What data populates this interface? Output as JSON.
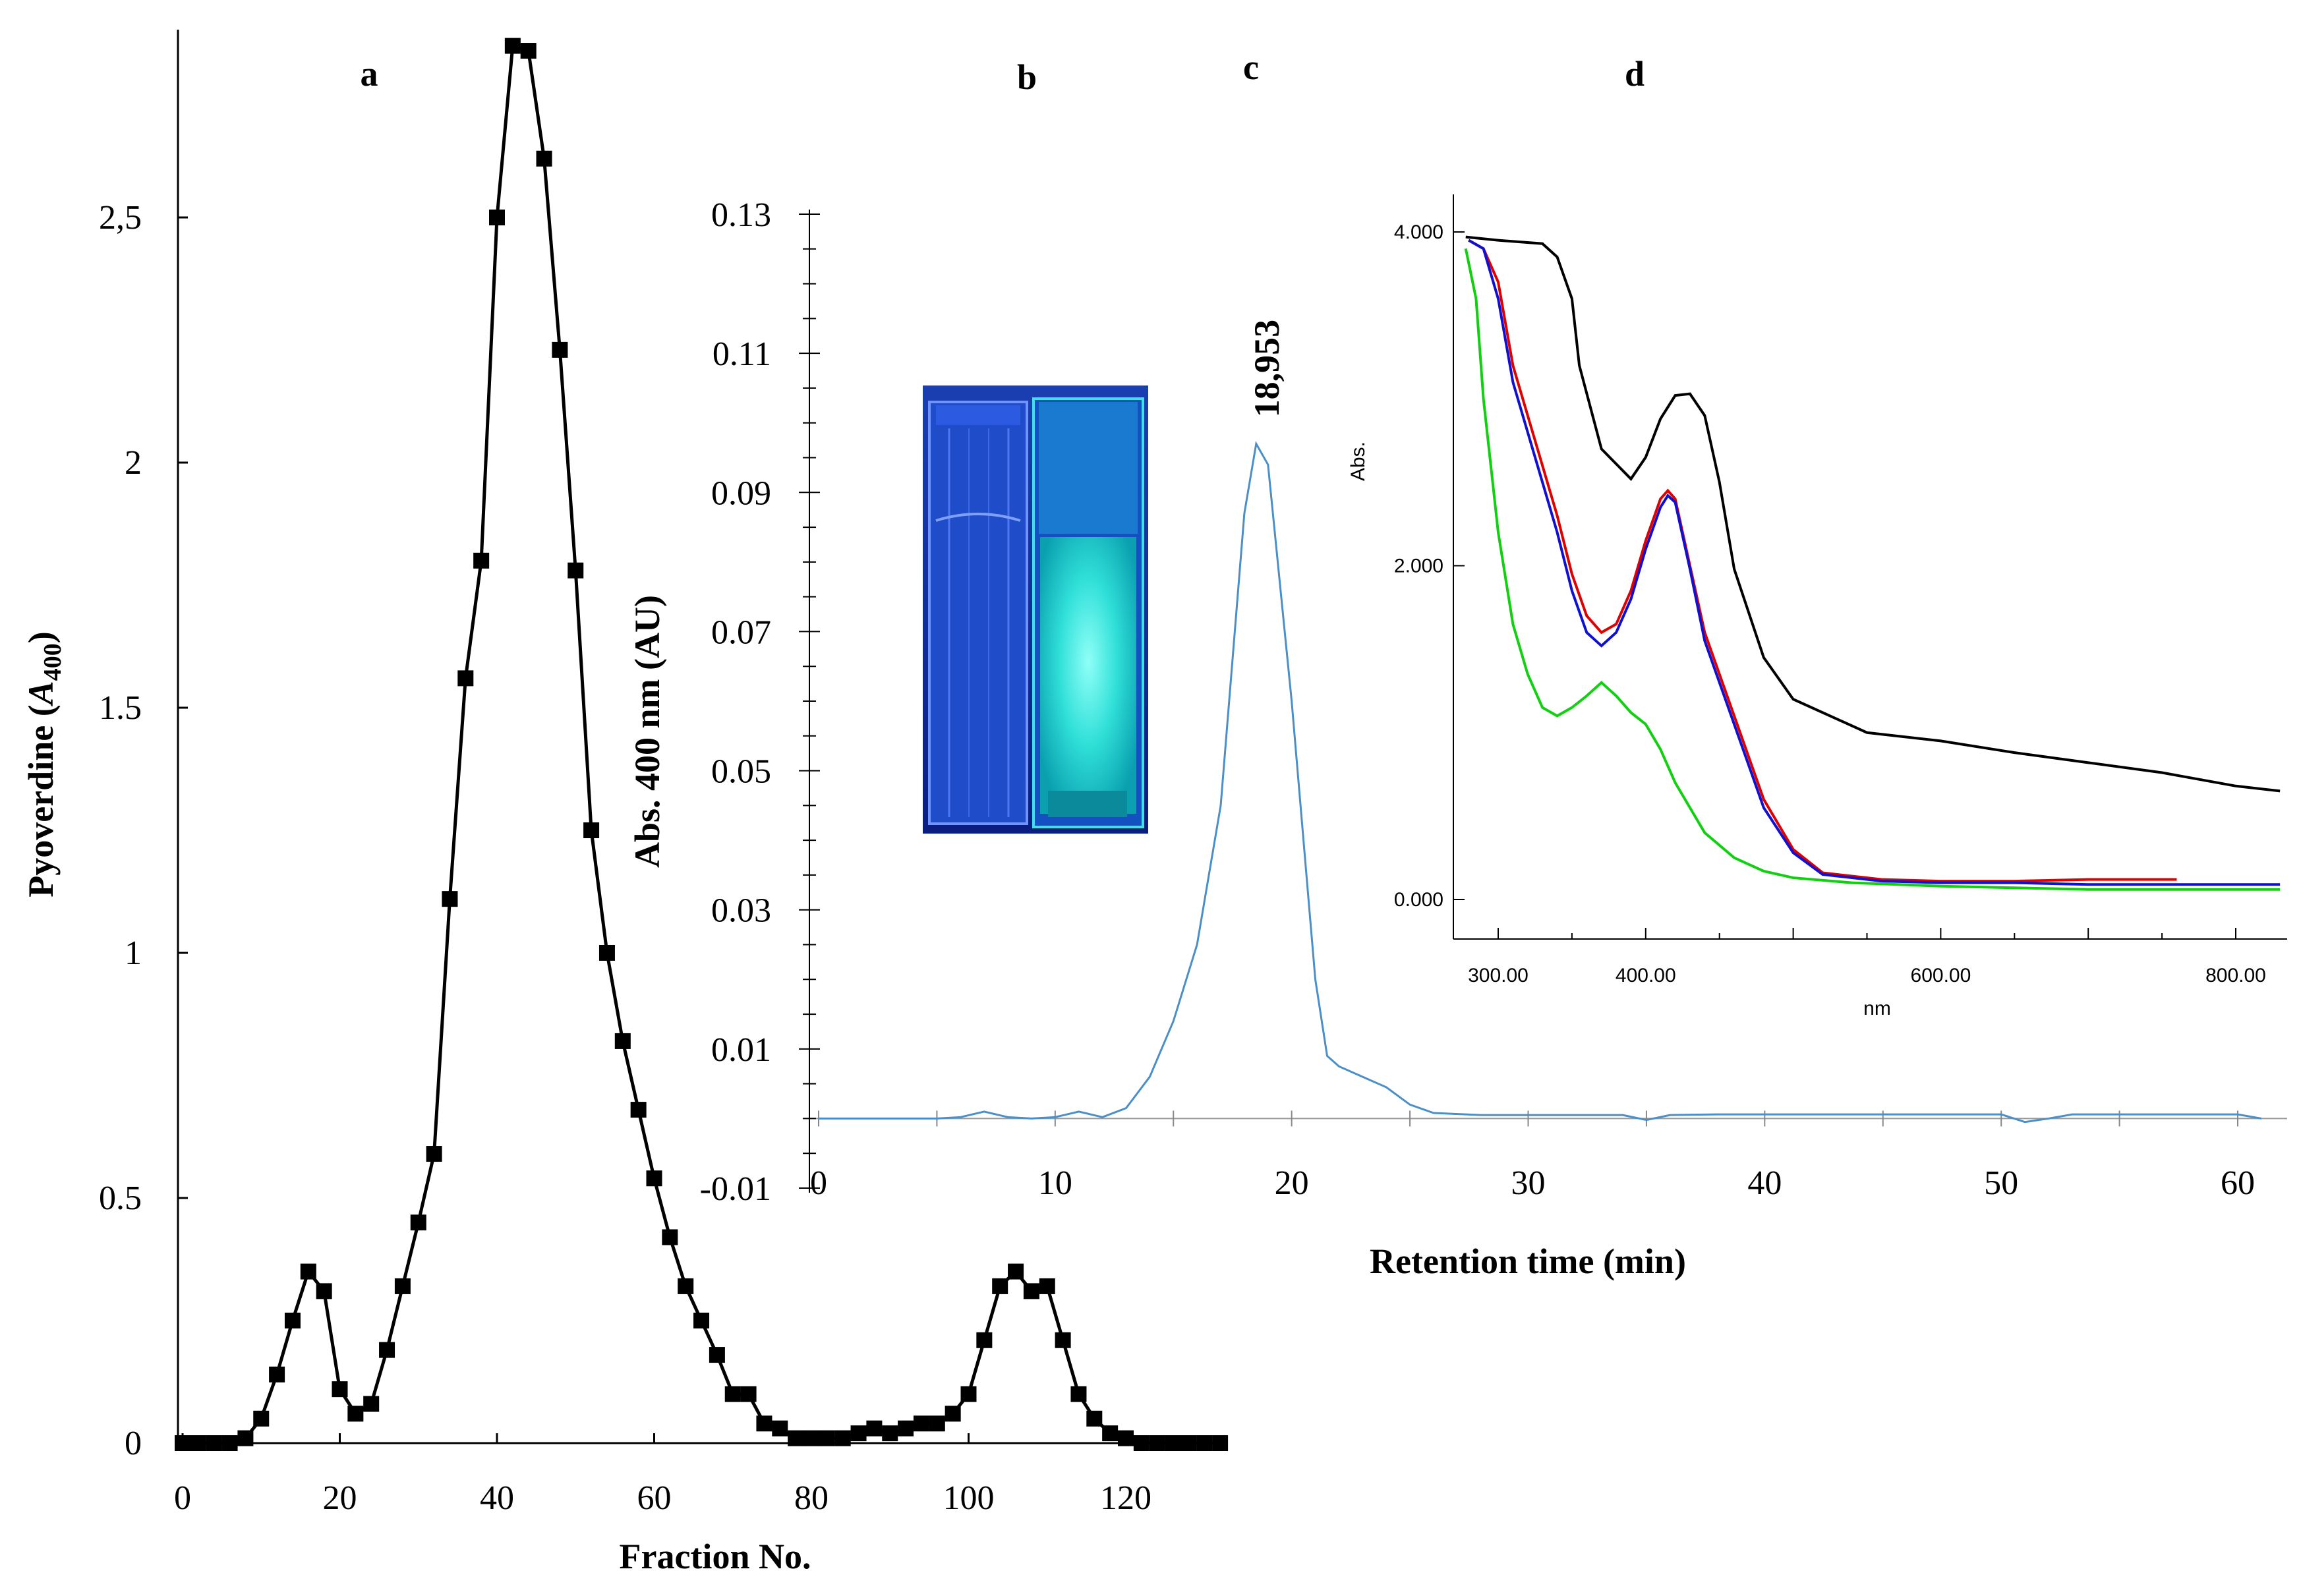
{
  "panels": {
    "a": "a",
    "b": "b",
    "c": "c",
    "d": "d"
  },
  "photo": {
    "description_icon": "cuvette-photo-icon",
    "glow_color": "#30e0d8"
  },
  "chart_data": [
    {
      "id": "panel-a",
      "type": "line",
      "title": "",
      "xlabel": "Fraction No.",
      "ylabel_main": "Pyoverdine (",
      "ylabel_italic": "A",
      "ylabel_sub": "400",
      "ylabel_end": ")",
      "xlim": [
        0,
        132
      ],
      "ylim": [
        0,
        2.9
      ],
      "xticks": [
        0,
        20,
        40,
        60,
        80,
        100,
        120
      ],
      "xtick_labels": [
        "0",
        "20",
        "40",
        "60",
        "80",
        "100",
        "120"
      ],
      "yticks": [
        0,
        0.5,
        1,
        1.5,
        2,
        2.5
      ],
      "ytick_labels": [
        "0",
        "0.5",
        "1",
        "1.5",
        "2",
        "2,5"
      ],
      "marker": "square",
      "color": "#000000",
      "x": [
        0,
        2,
        4,
        6,
        8,
        10,
        12,
        14,
        16,
        18,
        20,
        22,
        24,
        26,
        28,
        30,
        32,
        34,
        36,
        38,
        40,
        42,
        44,
        46,
        48,
        50,
        52,
        54,
        56,
        58,
        60,
        62,
        64,
        66,
        68,
        70,
        72,
        74,
        76,
        78,
        80,
        82,
        84,
        86,
        88,
        90,
        92,
        94,
        96,
        98,
        100,
        102,
        104,
        106,
        108,
        110,
        112,
        114,
        116,
        118,
        120,
        122,
        124,
        126,
        128,
        130,
        132
      ],
      "y": [
        0,
        0,
        0,
        0,
        0.01,
        0.05,
        0.14,
        0.25,
        0.35,
        0.31,
        0.11,
        0.06,
        0.08,
        0.19,
        0.32,
        0.45,
        0.59,
        1.11,
        1.56,
        1.8,
        2.5,
        2.85,
        2.84,
        2.62,
        2.23,
        1.78,
        1.25,
        1.0,
        0.82,
        0.68,
        0.54,
        0.42,
        0.32,
        0.25,
        0.18,
        0.1,
        0.1,
        0.04,
        0.03,
        0.01,
        0.01,
        0.01,
        0.01,
        0.02,
        0.03,
        0.02,
        0.03,
        0.04,
        0.04,
        0.06,
        0.1,
        0.21,
        0.32,
        0.35,
        0.31,
        0.32,
        0.21,
        0.1,
        0.05,
        0.02,
        0.01,
        0,
        0,
        0,
        0,
        0,
        0
      ]
    },
    {
      "id": "panel-c",
      "type": "line",
      "title": "",
      "xlabel": "Retention time (min)",
      "ylabel": "Abs. 400 nm (AU)",
      "xlim": [
        0,
        61
      ],
      "ylim": [
        -0.01,
        0.13
      ],
      "xticks": [
        0,
        10,
        20,
        30,
        40,
        50,
        60
      ],
      "xtick_labels": [
        "0",
        "10",
        "20",
        "30",
        "40",
        "50",
        "60"
      ],
      "yticks": [
        -0.01,
        0.01,
        0.03,
        0.05,
        0.07,
        0.09,
        0.11,
        0.13
      ],
      "ytick_labels": [
        "-0.01",
        "0.01",
        "0.03",
        "0.05",
        "0.07",
        "0.09",
        "0.11",
        "0.13"
      ],
      "peak_label": "18,953",
      "peak_x": 18.95,
      "peak_y": 0.097,
      "color": "#4a8fc8",
      "x": [
        0,
        5,
        6,
        7,
        8,
        9,
        10,
        11,
        12,
        13,
        14,
        15,
        16,
        17,
        18,
        18.5,
        19,
        20,
        20.5,
        21,
        21.5,
        22,
        23,
        24,
        25,
        26,
        28,
        30,
        34,
        35,
        36,
        38,
        45,
        50,
        51,
        52,
        53,
        55,
        60,
        61
      ],
      "y": [
        0,
        0,
        0.0002,
        0.001,
        0.0002,
        0,
        0.0002,
        0.001,
        0.0002,
        0.0015,
        0.006,
        0.014,
        0.025,
        0.045,
        0.087,
        0.097,
        0.094,
        0.06,
        0.04,
        0.02,
        0.009,
        0.0075,
        0.006,
        0.0045,
        0.002,
        0.0008,
        0.0005,
        0.0005,
        0.0005,
        -0.0002,
        0.0005,
        0.0006,
        0.0006,
        0.0006,
        -0.0005,
        0,
        0.0006,
        0.0006,
        0.0006,
        0
      ]
    },
    {
      "id": "panel-d",
      "type": "line",
      "title": "",
      "xlabel": "nm",
      "ylabel": "Abs.",
      "xlim": [
        270,
        830
      ],
      "ylim": [
        -0.2,
        4.3
      ],
      "xticks": [
        300,
        400,
        600,
        800
      ],
      "xtick_labels": [
        "300.00",
        "400.00",
        "600.00",
        "800.00"
      ],
      "yticks": [
        0,
        2,
        4
      ],
      "ytick_labels": [
        "0.000",
        "2.000",
        "4.000"
      ],
      "series": [
        {
          "name": "black",
          "color": "#000000",
          "x": [
            278,
            300,
            330,
            340,
            350,
            355,
            370,
            390,
            400,
            410,
            420,
            430,
            440,
            450,
            460,
            480,
            500,
            550,
            600,
            650,
            700,
            750,
            800,
            830
          ],
          "y": [
            3.97,
            3.95,
            3.93,
            3.85,
            3.6,
            3.2,
            2.7,
            2.52,
            2.65,
            2.88,
            3.02,
            3.03,
            2.9,
            2.5,
            1.98,
            1.45,
            1.2,
            1.0,
            0.95,
            0.88,
            0.82,
            0.76,
            0.68,
            0.65
          ]
        },
        {
          "name": "red",
          "color": "#e00000",
          "x": [
            280,
            290,
            300,
            310,
            320,
            330,
            340,
            350,
            360,
            370,
            380,
            390,
            400,
            410,
            415,
            420,
            430,
            440,
            460,
            480,
            500,
            520,
            560,
            600,
            650,
            700,
            760
          ],
          "y": [
            3.95,
            3.9,
            3.7,
            3.2,
            2.9,
            2.6,
            2.3,
            1.95,
            1.7,
            1.6,
            1.65,
            1.85,
            2.15,
            2.4,
            2.45,
            2.4,
            2.0,
            1.6,
            1.1,
            0.6,
            0.3,
            0.16,
            0.12,
            0.11,
            0.11,
            0.12,
            0.12
          ]
        },
        {
          "name": "blue",
          "color": "#1010d0",
          "x": [
            280,
            290,
            300,
            310,
            320,
            330,
            340,
            350,
            360,
            370,
            380,
            390,
            400,
            410,
            415,
            420,
            430,
            440,
            460,
            480,
            500,
            520,
            560,
            600,
            650,
            700,
            750,
            800,
            830
          ],
          "y": [
            3.95,
            3.9,
            3.6,
            3.1,
            2.8,
            2.5,
            2.2,
            1.85,
            1.6,
            1.52,
            1.6,
            1.8,
            2.1,
            2.35,
            2.42,
            2.38,
            1.98,
            1.55,
            1.05,
            0.55,
            0.28,
            0.15,
            0.11,
            0.1,
            0.1,
            0.09,
            0.09,
            0.09,
            0.09
          ]
        },
        {
          "name": "green",
          "color": "#10d010",
          "x": [
            278,
            285,
            290,
            300,
            310,
            320,
            330,
            340,
            350,
            360,
            370,
            380,
            390,
            400,
            410,
            420,
            430,
            440,
            460,
            480,
            500,
            540,
            600,
            650,
            700,
            750,
            800,
            830
          ],
          "y": [
            3.9,
            3.6,
            3.0,
            2.2,
            1.65,
            1.35,
            1.15,
            1.1,
            1.15,
            1.22,
            1.3,
            1.22,
            1.12,
            1.05,
            0.9,
            0.7,
            0.55,
            0.4,
            0.25,
            0.17,
            0.13,
            0.1,
            0.08,
            0.07,
            0.06,
            0.06,
            0.06,
            0.06
          ]
        }
      ]
    }
  ]
}
